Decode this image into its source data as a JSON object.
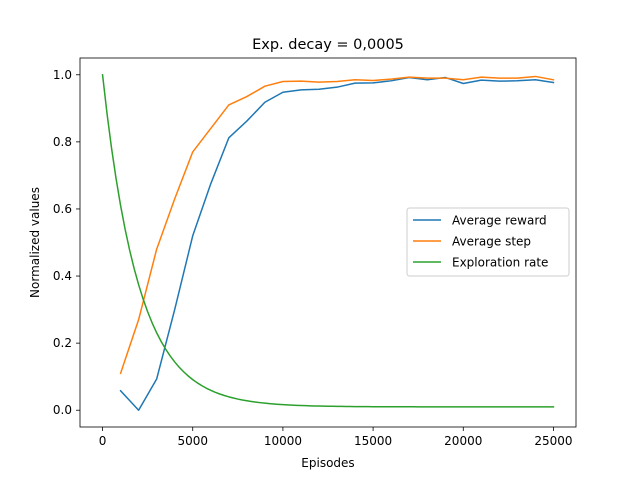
{
  "chart_data": {
    "type": "line",
    "title": "Exp. decay = 0,0005",
    "xlabel": "Episodes",
    "ylabel": "Normalized values",
    "xlim": [
      -1250,
      26250
    ],
    "ylim": [
      -0.05,
      1.05
    ],
    "xticks": [
      0,
      5000,
      10000,
      15000,
      20000,
      25000
    ],
    "xtick_labels": [
      "0",
      "5000",
      "10000",
      "15000",
      "20000",
      "25000"
    ],
    "yticks": [
      0.0,
      0.2,
      0.4,
      0.6,
      0.8,
      1.0
    ],
    "ytick_labels": [
      "0.0",
      "0.2",
      "0.4",
      "0.6",
      "0.8",
      "1.0"
    ],
    "grid": false,
    "legend_position": "center-right",
    "series": [
      {
        "name": "Average reward",
        "color": "#1f77b4",
        "x": [
          1000,
          2000,
          3000,
          4000,
          5000,
          6000,
          7000,
          8000,
          9000,
          10000,
          11000,
          12000,
          13000,
          14000,
          15000,
          16000,
          17000,
          18000,
          19000,
          20000,
          21000,
          22000,
          23000,
          24000,
          25000
        ],
        "y": [
          0.058,
          0.0,
          0.093,
          0.3,
          0.52,
          0.675,
          0.812,
          0.862,
          0.918,
          0.948,
          0.955,
          0.957,
          0.963,
          0.975,
          0.976,
          0.982,
          0.992,
          0.985,
          0.992,
          0.974,
          0.984,
          0.981,
          0.982,
          0.985,
          0.977
        ]
      },
      {
        "name": "Average step",
        "color": "#ff7f0e",
        "x": [
          1000,
          2000,
          3000,
          4000,
          5000,
          6000,
          7000,
          8000,
          9000,
          10000,
          11000,
          12000,
          13000,
          14000,
          15000,
          16000,
          17000,
          18000,
          19000,
          20000,
          21000,
          22000,
          23000,
          24000,
          25000
        ],
        "y": [
          0.11,
          0.27,
          0.48,
          0.63,
          0.77,
          0.84,
          0.91,
          0.935,
          0.966,
          0.98,
          0.981,
          0.978,
          0.98,
          0.985,
          0.983,
          0.987,
          0.993,
          0.99,
          0.99,
          0.985,
          0.993,
          0.99,
          0.99,
          0.995,
          0.985
        ]
      },
      {
        "name": "Exploration rate",
        "color": "#2ca02c",
        "function": "exp_decay",
        "decay": 0.0005,
        "min": 0.01,
        "max": 1.0,
        "x_range": [
          0,
          25000
        ],
        "step": 250
      }
    ]
  }
}
